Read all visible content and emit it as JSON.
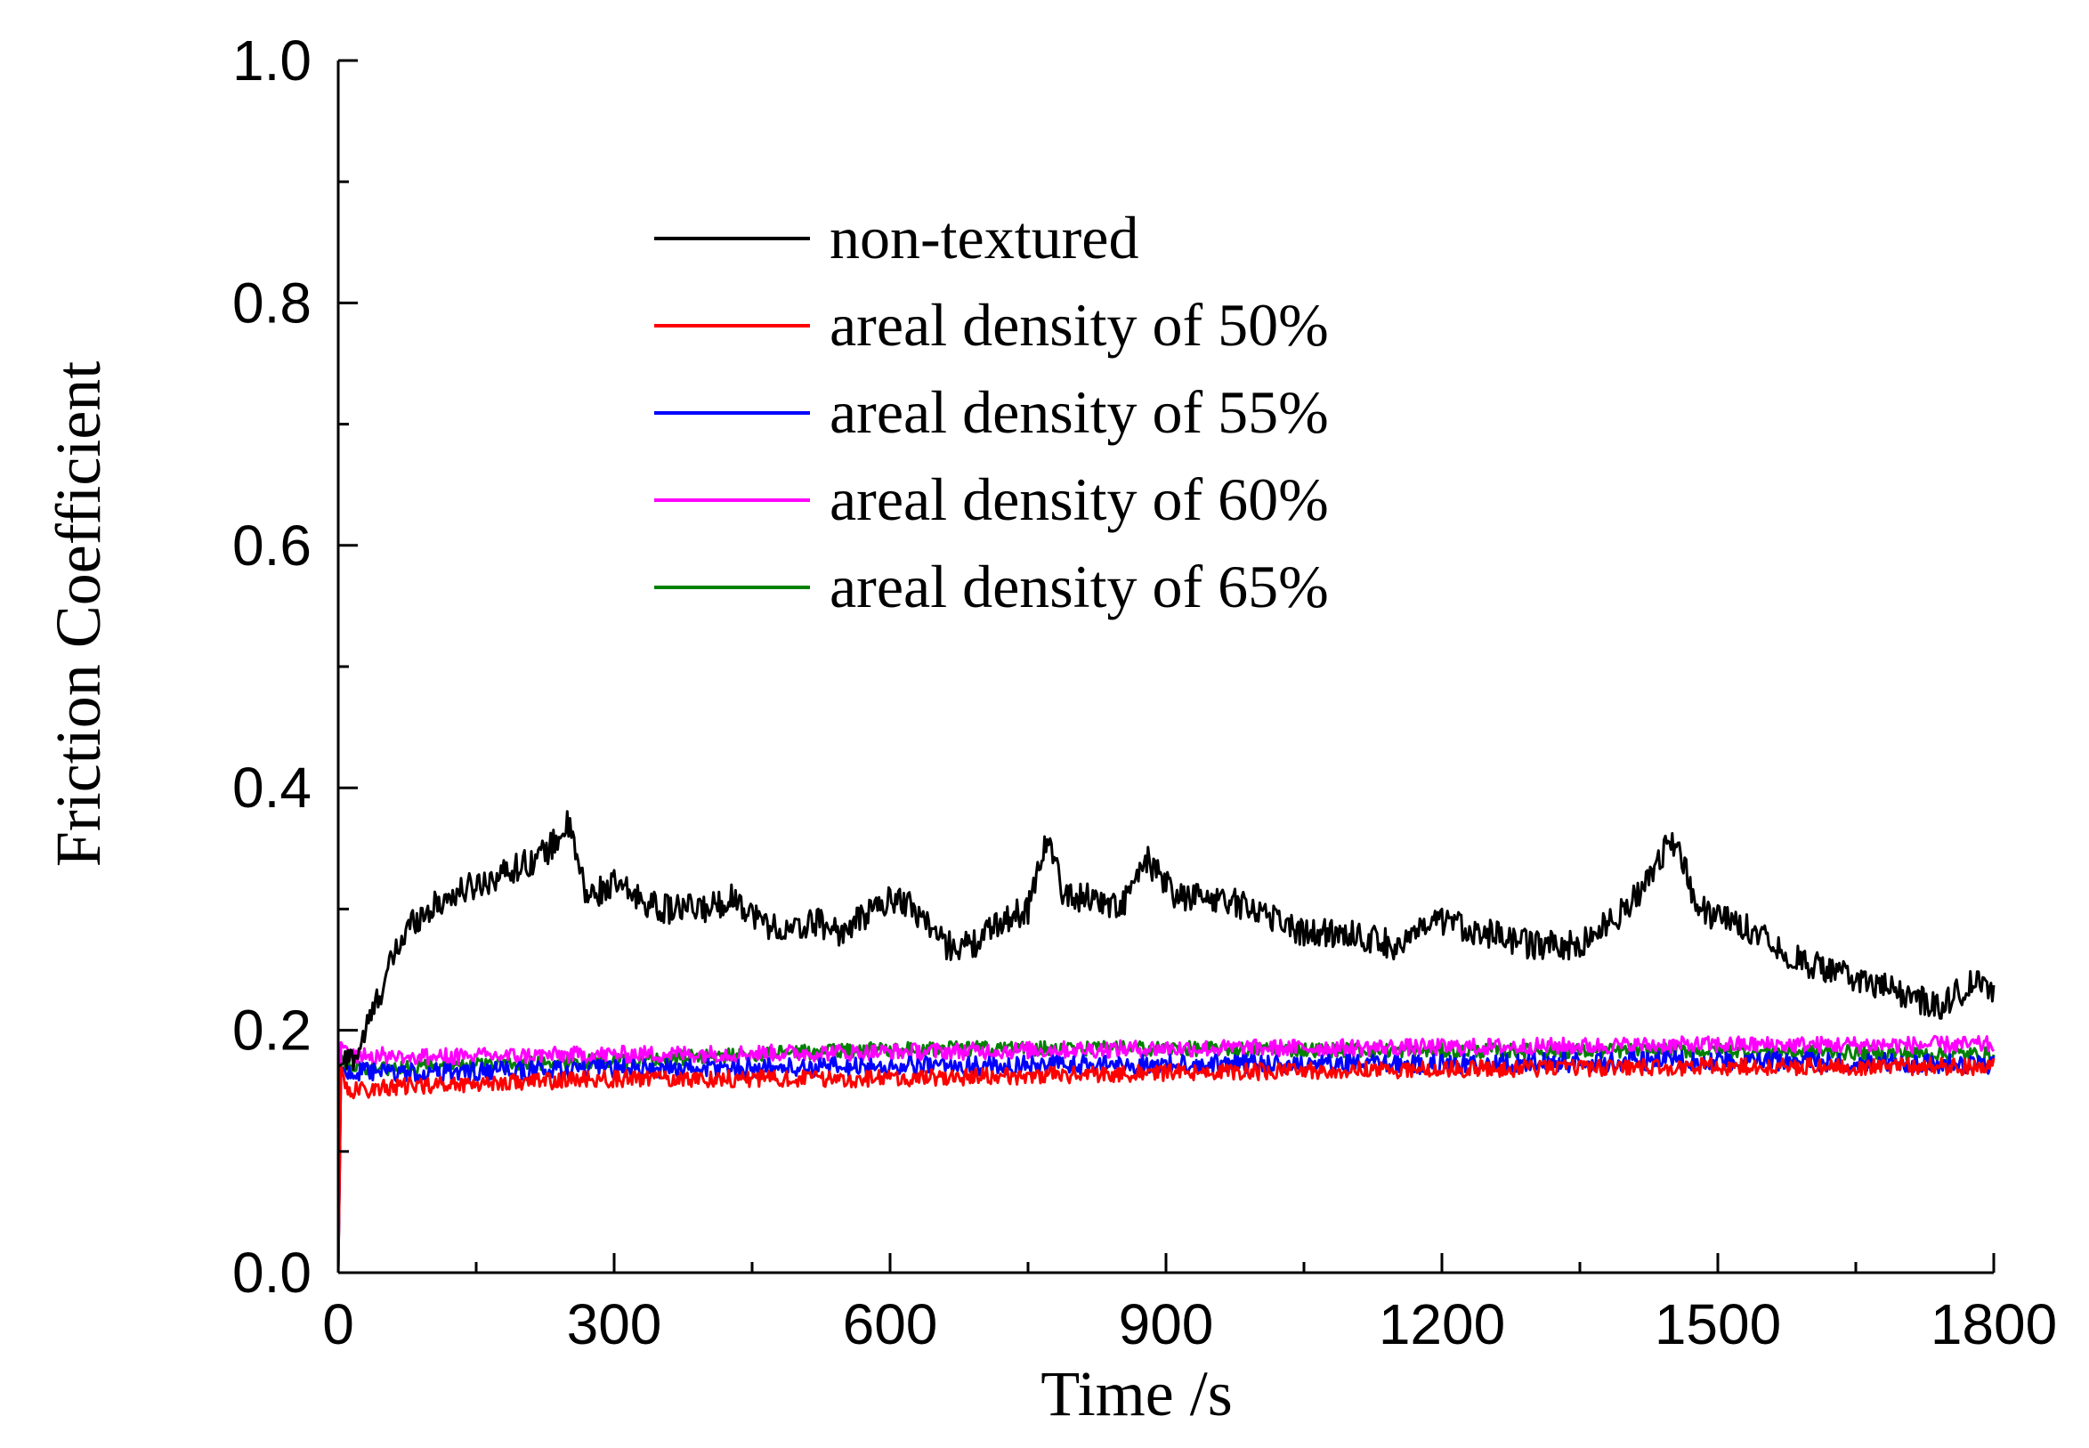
{
  "chart_data": {
    "type": "line",
    "title": "",
    "xlabel": "Time /s",
    "ylabel": "Friction Coefficient",
    "xlim": [
      0,
      1800
    ],
    "ylim": [
      0.0,
      1.0
    ],
    "x_ticks": [
      "0",
      "300",
      "600",
      "900",
      "1200",
      "1500",
      "1800"
    ],
    "y_ticks": [
      "0.0",
      "0.2",
      "0.4",
      "0.6",
      "0.8",
      "1.0"
    ],
    "grid": false,
    "legend_position": "upper-center",
    "series": [
      {
        "name": "non-textured",
        "color": "#000000",
        "x": [
          0,
          20,
          40,
          60,
          80,
          100,
          120,
          150,
          180,
          210,
          230,
          250,
          270,
          300,
          350,
          400,
          430,
          460,
          490,
          520,
          550,
          580,
          610,
          640,
          660,
          690,
          720,
          750,
          770,
          790,
          820,
          850,
          880,
          910,
          950,
          1000,
          1050,
          1100,
          1150,
          1200,
          1250,
          1300,
          1350,
          1400,
          1420,
          1450,
          1480,
          1510,
          1550,
          1580,
          1620,
          1660,
          1700,
          1740,
          1780,
          1800
        ],
        "y": [
          0.17,
          0.18,
          0.22,
          0.26,
          0.29,
          0.3,
          0.31,
          0.32,
          0.33,
          0.34,
          0.35,
          0.37,
          0.31,
          0.32,
          0.3,
          0.3,
          0.31,
          0.29,
          0.28,
          0.29,
          0.28,
          0.3,
          0.31,
          0.29,
          0.27,
          0.27,
          0.29,
          0.3,
          0.36,
          0.31,
          0.31,
          0.3,
          0.34,
          0.31,
          0.31,
          0.3,
          0.28,
          0.28,
          0.27,
          0.29,
          0.28,
          0.27,
          0.27,
          0.3,
          0.32,
          0.36,
          0.3,
          0.29,
          0.28,
          0.26,
          0.25,
          0.24,
          0.23,
          0.22,
          0.24,
          0.23
        ]
      },
      {
        "name": "areal density of 50%",
        "color": "#ff0000",
        "x": [
          0,
          3,
          10,
          100,
          300,
          600,
          900,
          1200,
          1500,
          1800
        ],
        "y": [
          0.0,
          0.17,
          0.15,
          0.155,
          0.16,
          0.16,
          0.165,
          0.168,
          0.17,
          0.17
        ],
        "noise": 0.007
      },
      {
        "name": "areal density of 55%",
        "color": "#0000ff",
        "x": [
          0,
          3,
          10,
          100,
          300,
          600,
          900,
          1200,
          1500,
          1800
        ],
        "y": [
          0.0,
          0.17,
          0.165,
          0.165,
          0.168,
          0.17,
          0.172,
          0.172,
          0.175,
          0.172
        ],
        "noise": 0.008
      },
      {
        "name": "areal density of 60%",
        "color": "#ff00ff",
        "x": [
          0,
          3,
          10,
          100,
          300,
          600,
          900,
          1200,
          1500,
          1800
        ],
        "y": [
          0.0,
          0.19,
          0.18,
          0.178,
          0.18,
          0.182,
          0.185,
          0.186,
          0.188,
          0.188
        ],
        "noise": 0.007
      },
      {
        "name": "areal density of 65%",
        "color": "#008000",
        "x": [
          0,
          3,
          10,
          100,
          300,
          600,
          900,
          1200,
          1500,
          1800
        ],
        "y": [
          0.0,
          0.18,
          0.168,
          0.17,
          0.175,
          0.185,
          0.185,
          0.183,
          0.183,
          0.18
        ],
        "noise": 0.006
      }
    ]
  }
}
